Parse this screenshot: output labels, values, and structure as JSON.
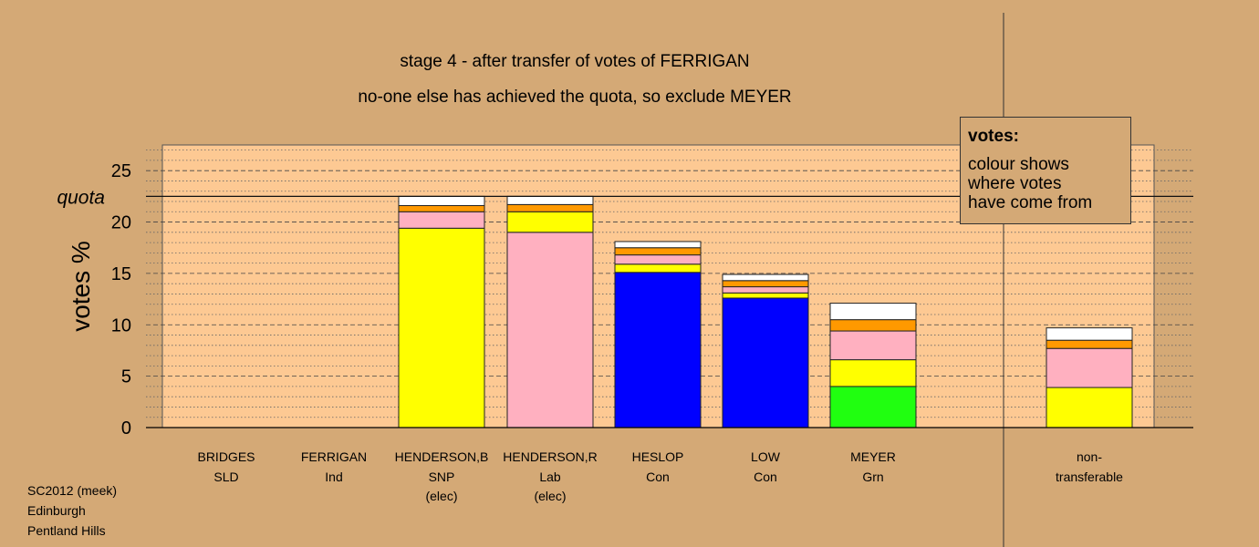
{
  "titles": {
    "line1": "stage 4 - after transfer of votes of FERRIGAN",
    "line2": "no-one else has achieved the quota, so exclude MEYER"
  },
  "legend": {
    "title": "votes:",
    "lines": [
      "colour shows",
      "where votes",
      "have come from"
    ]
  },
  "footer": [
    "SC2012 (meek)",
    "Edinburgh",
    "Pentland Hills"
  ],
  "colors": {
    "background": "#d4a976",
    "plot_area": "#fdc993",
    "SNP": "#ffff00",
    "Lab": "#ffb0c0",
    "Con": "#0000ff",
    "Grn": "#20ff10",
    "Ind": "#ff9900",
    "SLD": "#ffffff"
  },
  "chart_data": {
    "type": "bar",
    "stacked": true,
    "ylabel": "votes %",
    "ylim": [
      0,
      27.5
    ],
    "yticks": [
      0,
      5,
      10,
      15,
      20,
      25
    ],
    "quota": 22.5,
    "quota_label": "quota",
    "grid": true,
    "candidates": [
      {
        "name": "BRIDGES",
        "party": "SLD",
        "note": "",
        "segments": []
      },
      {
        "name": "FERRIGAN",
        "party": "Ind",
        "note": "",
        "segments": []
      },
      {
        "name": "HENDERSON,B",
        "party": "SNP",
        "note": "(elec)",
        "segments": [
          {
            "from": "SNP",
            "value": 19.4
          },
          {
            "from": "Lab",
            "value": 1.6
          },
          {
            "from": "Ind",
            "value": 0.6
          },
          {
            "from": "SLD",
            "value": 0.9
          }
        ]
      },
      {
        "name": "HENDERSON,R",
        "party": "Lab",
        "note": "(elec)",
        "segments": [
          {
            "from": "Lab",
            "value": 19.0
          },
          {
            "from": "SNP",
            "value": 2.0
          },
          {
            "from": "Ind",
            "value": 0.7
          },
          {
            "from": "SLD",
            "value": 0.8
          }
        ]
      },
      {
        "name": "HESLOP",
        "party": "Con",
        "note": "",
        "segments": [
          {
            "from": "Con",
            "value": 15.1
          },
          {
            "from": "SNP",
            "value": 0.8
          },
          {
            "from": "Lab",
            "value": 0.9
          },
          {
            "from": "Ind",
            "value": 0.7
          },
          {
            "from": "SLD",
            "value": 0.6
          }
        ]
      },
      {
        "name": "LOW",
        "party": "Con",
        "note": "",
        "segments": [
          {
            "from": "Con",
            "value": 12.6
          },
          {
            "from": "SNP",
            "value": 0.5
          },
          {
            "from": "Lab",
            "value": 0.6
          },
          {
            "from": "Ind",
            "value": 0.6
          },
          {
            "from": "SLD",
            "value": 0.6
          }
        ]
      },
      {
        "name": "MEYER",
        "party": "Grn",
        "note": "",
        "segments": [
          {
            "from": "Grn",
            "value": 4.0
          },
          {
            "from": "SNP",
            "value": 2.6
          },
          {
            "from": "Lab",
            "value": 2.8
          },
          {
            "from": "Ind",
            "value": 1.1
          },
          {
            "from": "SLD",
            "value": 1.6
          }
        ]
      },
      {
        "name": "non-",
        "party": "transferable",
        "note": "",
        "segments": [
          {
            "from": "SNP",
            "value": 3.9
          },
          {
            "from": "Lab",
            "value": 3.8
          },
          {
            "from": "Ind",
            "value": 0.8
          },
          {
            "from": "SLD",
            "value": 1.2
          }
        ]
      }
    ]
  }
}
